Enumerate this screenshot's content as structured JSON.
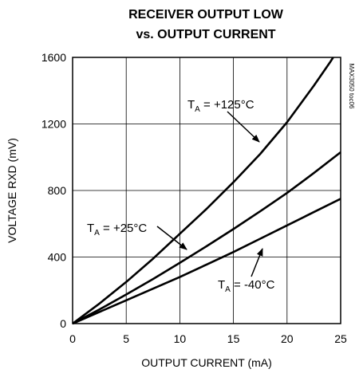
{
  "chart_data": {
    "type": "line",
    "title_lines": [
      "RECEIVER OUTPUT LOW",
      "vs. OUTPUT CURRENT"
    ],
    "xlabel": "OUTPUT CURRENT (mA)",
    "ylabel": "VOLTAGE RXD (mV)",
    "xlim": [
      0,
      25
    ],
    "ylim": [
      0,
      1600
    ],
    "xticks": [
      0,
      5,
      10,
      15,
      20,
      25
    ],
    "yticks": [
      0,
      400,
      800,
      1200,
      1600
    ],
    "grid": true,
    "side_note": "MAX3050 toc06",
    "series": [
      {
        "label_main": "T",
        "label_sub": "A",
        "label_rest": " = +125°C",
        "x": [
          0,
          2.5,
          5,
          7.5,
          10,
          12.5,
          15,
          17.5,
          20,
          22.5,
          24,
          24.3
        ],
        "y": [
          0,
          120,
          250,
          390,
          540,
          690,
          850,
          1020,
          1210,
          1430,
          1570,
          1600
        ]
      },
      {
        "label_main": "T",
        "label_sub": "A",
        "label_rest": " = +25°C",
        "x": [
          0,
          2.5,
          5,
          7.5,
          10,
          12.5,
          15,
          17.5,
          20,
          22.5,
          25
        ],
        "y": [
          0,
          85,
          175,
          268,
          365,
          465,
          568,
          675,
          785,
          905,
          1030
        ]
      },
      {
        "label_main": "T",
        "label_sub": "A",
        "label_rest": " = -40°C",
        "x": [
          0,
          2.5,
          5,
          7.5,
          10,
          12.5,
          15,
          17.5,
          20,
          22.5,
          25
        ],
        "y": [
          0,
          70,
          140,
          210,
          280,
          355,
          430,
          510,
          590,
          670,
          750
        ]
      }
    ]
  }
}
